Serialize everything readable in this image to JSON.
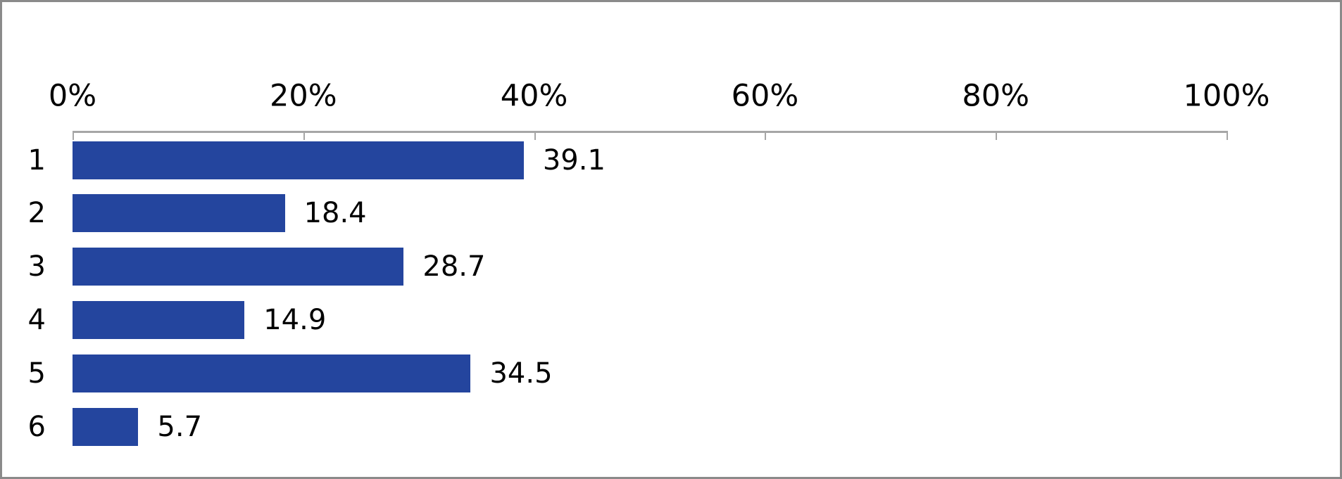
{
  "chart_data": {
    "type": "bar",
    "orientation": "horizontal",
    "title": "",
    "xlabel": "",
    "ylabel": "",
    "categories": [
      "1",
      "2",
      "3",
      "4",
      "5",
      "6"
    ],
    "values": [
      39.1,
      18.4,
      28.7,
      14.9,
      34.5,
      5.7
    ],
    "value_labels": [
      "39.1",
      "18.4",
      "28.7",
      "14.9",
      "34.5",
      "5.7"
    ],
    "x_ticks": [
      {
        "label": "0%",
        "value": 0
      },
      {
        "label": "20%",
        "value": 20
      },
      {
        "label": "40%",
        "value": 40
      },
      {
        "label": "60%",
        "value": 60
      },
      {
        "label": "80%",
        "value": 80
      },
      {
        "label": "100%",
        "value": 100
      }
    ],
    "xlim": [
      0,
      100
    ],
    "axis_position": "top",
    "grid": false,
    "legend": false,
    "colors": {
      "bar": "#24459e",
      "axis": "#a6a6a6",
      "frame_border": "#8a8a8a",
      "text": "#000000",
      "background": "#ffffff"
    }
  }
}
